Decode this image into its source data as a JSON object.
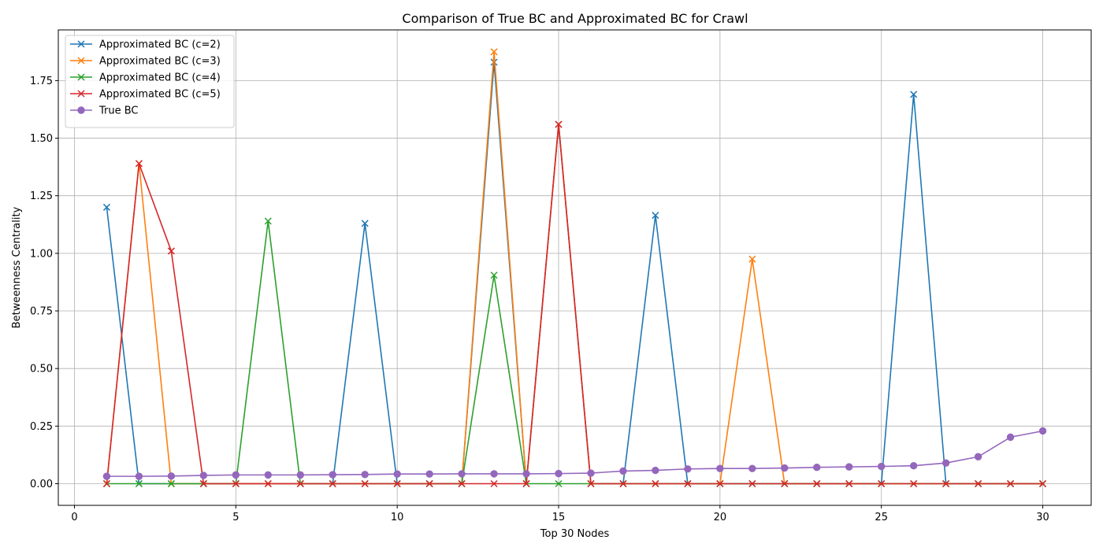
{
  "chart_data": {
    "type": "line",
    "title": "Comparison of True BC and Approximated BC for Crawl",
    "xlabel": "Top 30 Nodes",
    "ylabel": "Betweenness Centrality",
    "xlim": [
      -0.5,
      31.5
    ],
    "ylim": [
      -0.094,
      1.97
    ],
    "xticks": [
      0,
      5,
      10,
      15,
      20,
      25,
      30
    ],
    "yticks": [
      0.0,
      0.25,
      0.5,
      0.75,
      1.0,
      1.25,
      1.5,
      1.75
    ],
    "ytick_labels": [
      "0.00",
      "0.25",
      "0.50",
      "0.75",
      "1.00",
      "1.25",
      "1.50",
      "1.75"
    ],
    "grid": true,
    "legend_position": "top-left",
    "x": [
      1,
      2,
      3,
      4,
      5,
      6,
      7,
      8,
      9,
      10,
      11,
      12,
      13,
      14,
      15,
      16,
      17,
      18,
      19,
      20,
      21,
      22,
      23,
      24,
      25,
      26,
      27,
      28,
      29,
      30
    ],
    "series": [
      {
        "name": "Approximated BC (c=2)",
        "color": "#1f77b4",
        "marker": "x",
        "values": [
          1.2,
          0,
          0,
          0,
          0,
          0,
          0,
          0,
          1.13,
          0,
          0,
          0,
          1.83,
          0,
          1.56,
          0,
          0,
          1.165,
          0,
          0,
          0,
          0,
          0,
          0,
          0,
          1.69,
          0,
          0,
          0,
          0
        ]
      },
      {
        "name": "Approximated BC (c=3)",
        "color": "#ff7f0e",
        "marker": "x",
        "values": [
          0,
          1.39,
          0,
          0,
          0,
          0,
          0,
          0,
          0,
          0,
          0,
          0,
          1.875,
          0,
          1.56,
          0,
          0,
          0,
          0,
          0,
          0.975,
          0,
          0,
          0,
          0,
          0,
          0,
          0,
          0,
          0
        ]
      },
      {
        "name": "Approximated BC (c=4)",
        "color": "#2ca02c",
        "marker": "x",
        "values": [
          0,
          0,
          0,
          0,
          0,
          1.14,
          0,
          0,
          0,
          0,
          0,
          0,
          0.905,
          0,
          0,
          0,
          0,
          0,
          0,
          0,
          0,
          0,
          0,
          0,
          0,
          0,
          0,
          0,
          0,
          0
        ]
      },
      {
        "name": "Approximated BC (c=5)",
        "color": "#d62728",
        "marker": "x",
        "values": [
          0,
          1.39,
          1.01,
          0,
          0,
          0,
          0,
          0,
          0,
          0,
          0,
          0,
          0,
          0,
          1.56,
          0,
          0,
          0,
          0,
          0,
          0,
          0,
          0,
          0,
          0,
          0,
          0,
          0,
          0,
          0
        ]
      },
      {
        "name": "True BC",
        "color": "#9467bd",
        "marker": "o",
        "values": [
          0.032,
          0.032,
          0.033,
          0.036,
          0.038,
          0.038,
          0.038,
          0.039,
          0.04,
          0.042,
          0.042,
          0.043,
          0.043,
          0.043,
          0.044,
          0.046,
          0.055,
          0.058,
          0.064,
          0.066,
          0.066,
          0.068,
          0.071,
          0.073,
          0.075,
          0.078,
          0.09,
          0.117,
          0.202,
          0.229
        ]
      }
    ]
  }
}
